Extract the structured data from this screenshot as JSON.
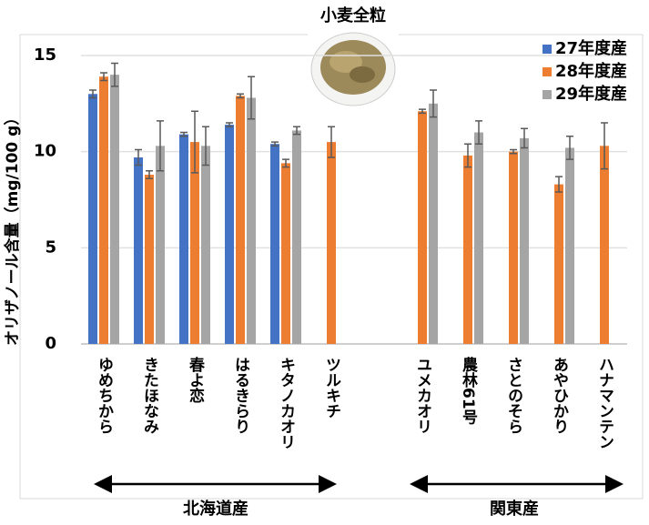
{
  "chart_data": {
    "type": "bar",
    "title": "小麦全粒",
    "y_label": "オリザノール含量（mg/100 g）",
    "categories": [
      "ゆめちから",
      "きたほなみ",
      "春よ恋",
      "はるきらり",
      "キタノカオリ",
      "ツルキチ",
      null,
      "ユメカオリ",
      "農林61号",
      "さとのそら",
      "あやひかり",
      "ハナマンテン"
    ],
    "series": [
      {
        "name": "27年度産",
        "color": "#4472c4",
        "values": [
          13.0,
          9.7,
          10.9,
          11.4,
          10.4,
          null,
          null,
          null,
          null,
          null,
          null,
          null
        ],
        "errors": [
          0.2,
          0.4,
          0.1,
          0.1,
          0.1,
          null,
          null,
          null,
          null,
          null,
          null,
          null
        ]
      },
      {
        "name": "28年度産",
        "color": "#ed7d31",
        "values": [
          13.9,
          8.8,
          10.5,
          12.9,
          9.4,
          10.5,
          null,
          12.1,
          9.8,
          10.0,
          8.3,
          10.3
        ],
        "errors": [
          0.2,
          0.2,
          1.6,
          0.1,
          0.2,
          0.8,
          null,
          0.1,
          0.6,
          0.1,
          0.4,
          1.2
        ]
      },
      {
        "name": "29年度産",
        "color": "#a5a5a5",
        "values": [
          14.0,
          10.3,
          10.3,
          12.8,
          11.1,
          null,
          null,
          12.5,
          11.0,
          10.7,
          10.2,
          null
        ],
        "errors": [
          0.6,
          1.3,
          1.0,
          1.1,
          0.2,
          null,
          null,
          0.7,
          0.6,
          0.5,
          0.6,
          null
        ]
      }
    ],
    "ylim": [
      0,
      15
    ],
    "yticks": [
      0,
      5,
      10,
      15
    ],
    "grid": true,
    "regions": [
      "北海道産",
      "関東産"
    ]
  }
}
